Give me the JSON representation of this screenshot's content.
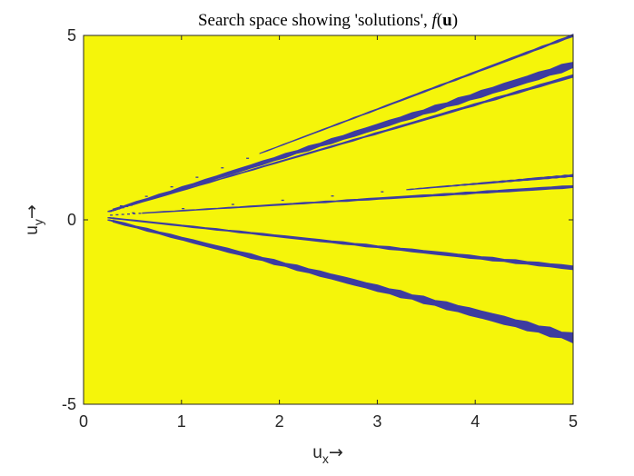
{
  "chart_data": {
    "type": "heatmap",
    "title": "Search space showing 'solutions', f(u)",
    "title_parts": {
      "prefix": "Search space showing 'solutions', ",
      "func": "f",
      "open": "(",
      "var": "u",
      "close": ")"
    },
    "xlabel": {
      "base": "u",
      "sub": "x",
      "arrow": "→"
    },
    "ylabel": {
      "base": "u",
      "sub": "y",
      "arrow": "→"
    },
    "xlim": [
      0,
      5
    ],
    "ylim": [
      -5,
      5
    ],
    "xticks": [
      0,
      1,
      2,
      3,
      4,
      5
    ],
    "yticks": [
      -5,
      0,
      5
    ],
    "xtick_labels": [
      "0",
      "1",
      "2",
      "3",
      "4",
      "5"
    ],
    "ytick_labels": [
      "-5",
      "0",
      "5"
    ],
    "grid": false,
    "background_value_color": "#f5f50a",
    "solution_color": "#3d3ca0",
    "origin_point": {
      "x": 0.1,
      "y": 0.1
    },
    "solution_curves": [
      {
        "end_x": 5,
        "end_y": 5.0,
        "start_x": 1.8,
        "max_width": 0.035
      },
      {
        "end_x": 5,
        "end_y": 4.2,
        "start_x": 0.3,
        "max_width": 0.12
      },
      {
        "end_x": 5,
        "end_y": 3.9,
        "start_x": 0.5,
        "max_width": 0.04
      },
      {
        "end_x": 5,
        "end_y": 1.2,
        "start_x": 3.3,
        "max_width": 0.035
      },
      {
        "end_x": 5,
        "end_y": 0.9,
        "start_x": 0.6,
        "max_width": 0.04
      },
      {
        "end_x": 5,
        "end_y": -1.3,
        "start_x": 0.3,
        "max_width": 0.06
      },
      {
        "end_x": 5,
        "end_y": -3.2,
        "start_x": 0.3,
        "max_width": 0.14
      }
    ]
  }
}
